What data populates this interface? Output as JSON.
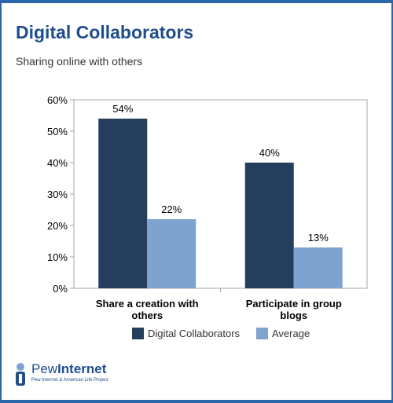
{
  "header": {
    "title": "Digital Collaborators",
    "subtitle": "Sharing online with others"
  },
  "colors": {
    "series1": "#263e5e",
    "series2": "#7fa3cf",
    "title": "#1f4e8c",
    "frame": "#2a66a8"
  },
  "chart_data": {
    "type": "bar",
    "categories": [
      "Share a creation with others",
      "Participate in group blogs"
    ],
    "category_lines": [
      [
        "Share a creation with",
        "others"
      ],
      [
        "Participate in group",
        "blogs"
      ]
    ],
    "series": [
      {
        "name": "Digital Collaborators",
        "values": [
          54,
          40
        ],
        "labels": [
          "54%",
          "40%"
        ]
      },
      {
        "name": "Average",
        "values": [
          22,
          13
        ],
        "labels": [
          "22%",
          "13%"
        ]
      }
    ],
    "ylim": [
      0,
      60
    ],
    "yticks": [
      "0%",
      "10%",
      "20%",
      "30%",
      "40%",
      "50%",
      "60%"
    ],
    "ytick_values": [
      0,
      10,
      20,
      30,
      40,
      50,
      60
    ],
    "legend_position": "bottom",
    "grid": false
  },
  "logo": {
    "name_part1": "Pew",
    "name_part2": "Internet",
    "tagline": "Pew Internet & American Life Project"
  }
}
